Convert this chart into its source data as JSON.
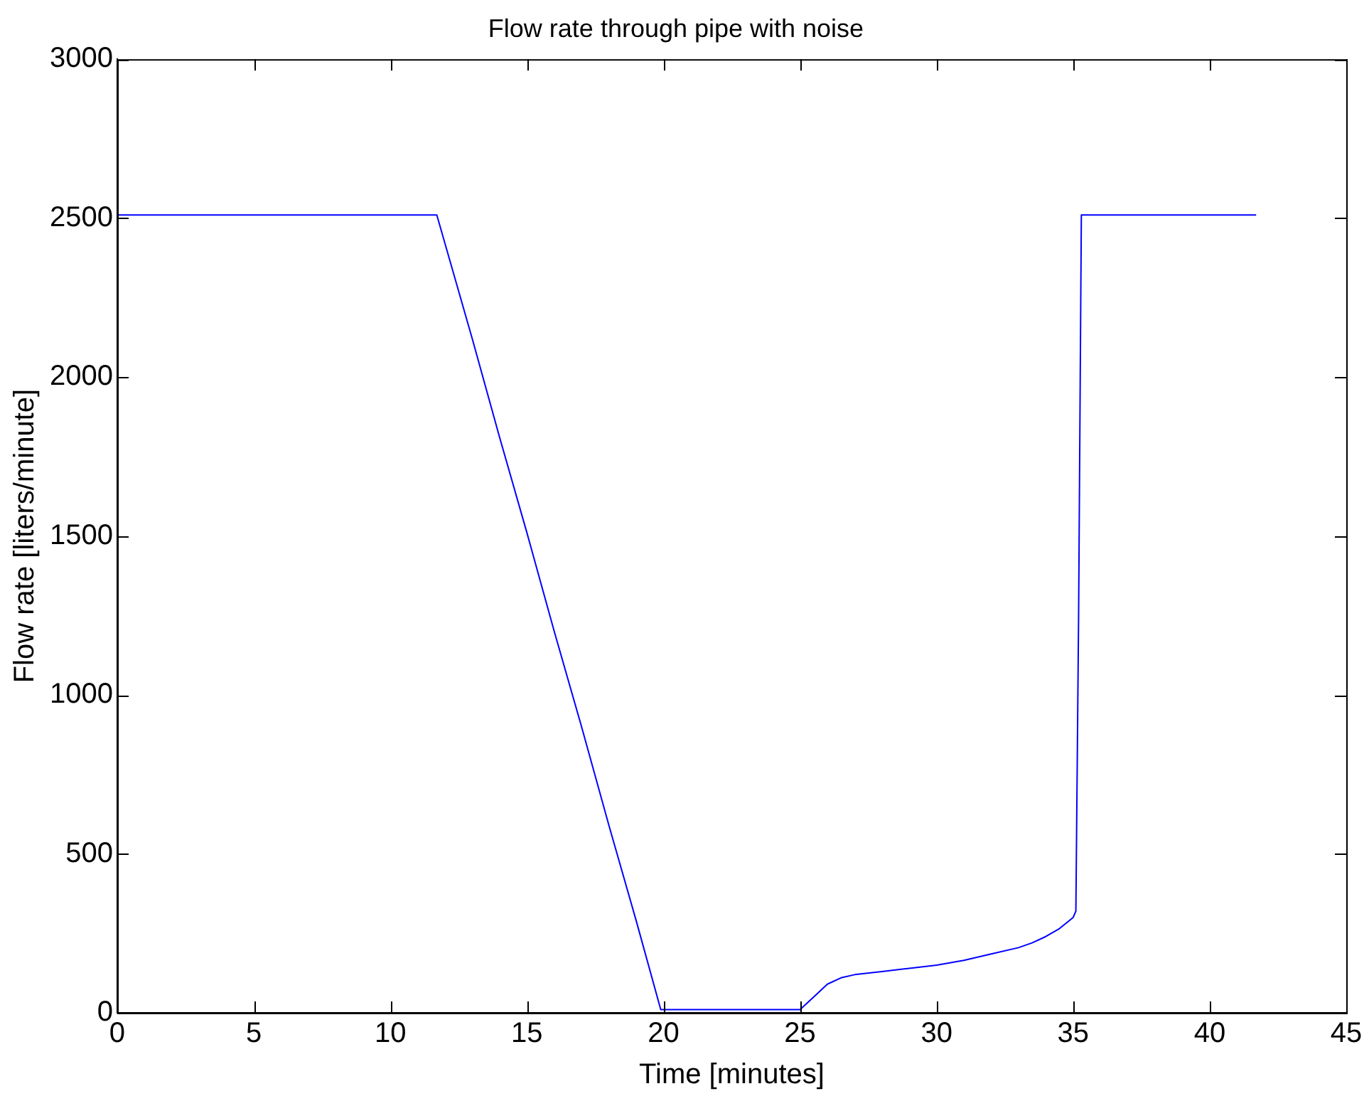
{
  "chart_data": {
    "type": "line",
    "title": "Flow rate through pipe with noise",
    "xlabel": "Time [minutes]",
    "ylabel": "Flow rate [liters/minute]",
    "x": [
      0,
      5,
      10,
      11.7,
      13,
      14,
      15,
      16,
      17,
      18,
      19,
      19.9,
      20.5,
      22,
      24,
      25,
      25.5,
      26,
      26.5,
      27,
      28,
      29,
      30,
      31,
      32,
      33,
      33.5,
      34,
      34.5,
      35,
      35.1,
      35.2,
      35.3,
      36,
      38,
      40,
      41.7
    ],
    "series": [
      {
        "color": "#0000ff",
        "values": [
          2510,
          2510,
          2510,
          2510,
          2120,
          1810,
          1510,
          1200,
          900,
          590,
          290,
          10,
          10,
          10,
          10,
          10,
          50,
          90,
          110,
          120,
          130,
          140,
          150,
          165,
          185,
          205,
          220,
          240,
          265,
          300,
          320,
          1250,
          2510,
          2510,
          2510,
          2510,
          2510
        ]
      }
    ],
    "xlim": [
      0,
      45
    ],
    "xticks": [
      0,
      5,
      10,
      15,
      20,
      25,
      30,
      35,
      40,
      45
    ],
    "ylim": [
      0,
      3000
    ],
    "yticks": [
      0,
      500,
      1000,
      1500,
      2000,
      2500,
      3000
    ],
    "grid": false,
    "legend": false,
    "marker": "none",
    "line_style": "solid"
  }
}
